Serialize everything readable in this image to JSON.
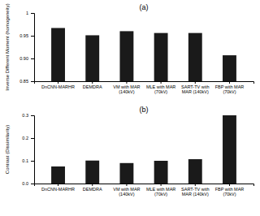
{
  "chart_data": [
    {
      "type": "bar",
      "title": "(a)",
      "categories": [
        "DnCNN-MARHR",
        "DEMDRA",
        "VM with MAR\n(140kV)",
        "MLE with MAR\n(70kV)",
        "SART-TV with\nMAR (140kV)",
        "FBP with MAR\n(70kV)"
      ],
      "values": [
        0.967,
        0.951,
        0.96,
        0.956,
        0.956,
        0.907
      ],
      "color": "#1a1a1a",
      "ylabel": "Inverse Different Moment (homogeneity)",
      "ylim": [
        0.85,
        1.0
      ],
      "yticks": [
        0.85,
        {
          "value": 0.9,
          "label": "0.90"
        },
        0.95,
        1
      ],
      "grid": false
    },
    {
      "type": "bar",
      "title": "(b)",
      "categories": [
        "DnCNN-MARHR",
        "DEMDRA",
        "VM with MAR\n(140kV)",
        "MLE with MAR\n(70kV)",
        "SART-TV with\nMAR (140kV)",
        "FBP with MAR\n(70kV)"
      ],
      "values": [
        0.075,
        0.101,
        0.09,
        0.1,
        0.107,
        0.3
      ],
      "color": "#1a1a1a",
      "ylabel": "Contrast (Dissimilarity)",
      "ylim": [
        0.0,
        0.3
      ],
      "yticks": [
        {
          "value": 0,
          "label": "0.0"
        },
        0.1,
        0.2,
        0.3
      ],
      "grid": false
    }
  ]
}
